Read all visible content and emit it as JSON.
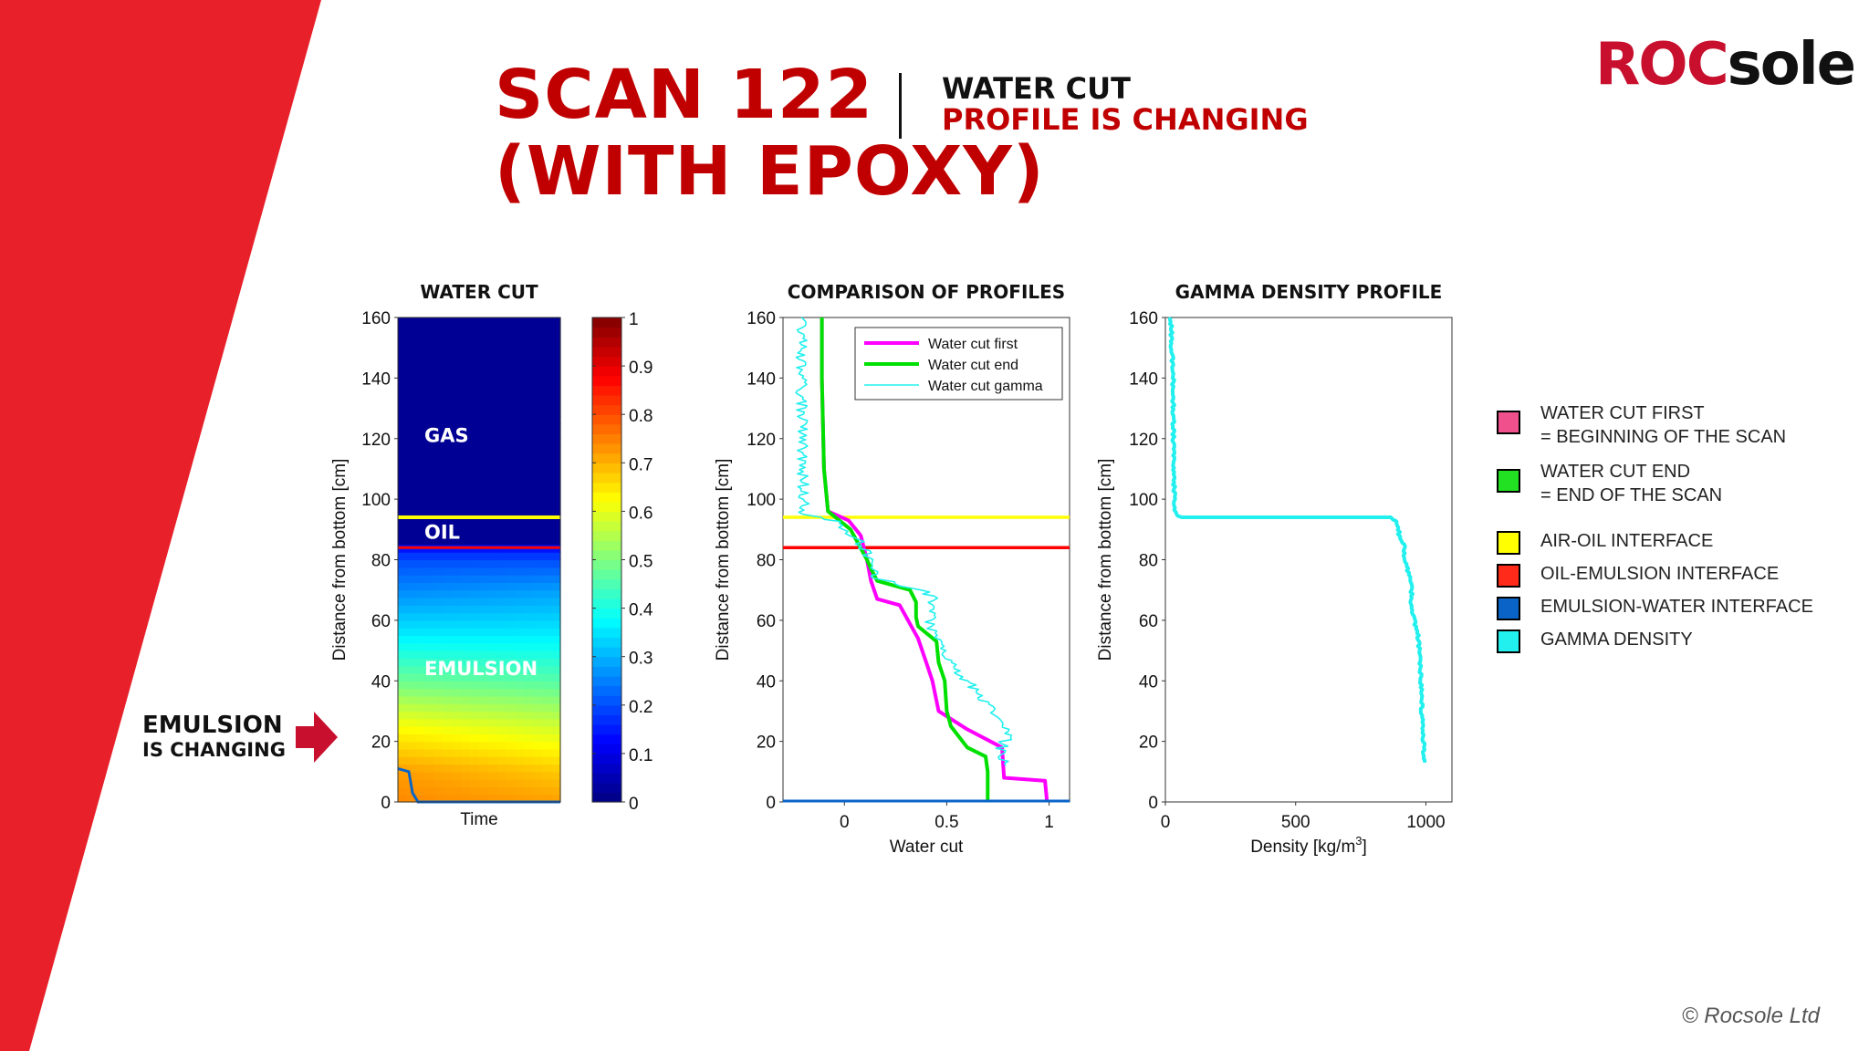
{
  "header": {
    "title_line1": "SCAN 122",
    "title_line2": "(WITH EPOXY)",
    "subtitle_line1": "WATER CUT",
    "subtitle_line2": "PROFILE IS CHANGING"
  },
  "logo": {
    "text_red": "ROC",
    "text_dark": "sole"
  },
  "copyright": "© Rocsole Ltd",
  "side_note": {
    "line1": "EMULSION",
    "line2": "IS CHANGING"
  },
  "colors": {
    "brand_red": "#e8202a",
    "title_red": "#c00000",
    "first": "#ff00ff",
    "end": "#00e000",
    "gamma": "#22f0ee",
    "air_oil": "#ffff00",
    "oil_emulsion": "#ff0000",
    "emulsion_water": "#0a64c8"
  },
  "legend": [
    {
      "label": "WATER CUT FIRST",
      "label2": "=  BEGINNING OF THE SCAN",
      "color": "#f0508c"
    },
    {
      "label": "WATER CUT END",
      "label2": "= END OF THE SCAN",
      "color": "#22e022"
    },
    {
      "label": "AIR-OIL INTERFACE",
      "color": "#ffff00"
    },
    {
      "label": "OIL-EMULSION INTERFACE",
      "color": "#ff2a1a"
    },
    {
      "label": "EMULSION-WATER INTERFACE",
      "color": "#0a64c8"
    },
    {
      "label": "GAMMA DENSITY",
      "color": "#22f0ee"
    }
  ],
  "chart_data": [
    {
      "type": "heatmap",
      "title": "WATER CUT",
      "xlabel": "Time",
      "ylabel": "Distance from bottom [cm]",
      "ylim": [
        0,
        160
      ],
      "yticks": [
        0,
        20,
        40,
        60,
        80,
        100,
        120,
        140,
        160
      ],
      "colorbar": {
        "range": [
          0,
          1
        ],
        "ticks": [
          0,
          0.1,
          0.2,
          0.3,
          0.4,
          0.5,
          0.6,
          0.7,
          0.8,
          0.9,
          1
        ],
        "colormap": "jet"
      },
      "regions": [
        {
          "label": "GAS",
          "y": 121
        },
        {
          "label": "OIL",
          "y": 89
        },
        {
          "label": "EMULSION",
          "y": 44
        }
      ],
      "interfaces": {
        "air_oil": 94,
        "oil_emulsion": 84
      },
      "profile_start": {
        "y": [
          0,
          10,
          25,
          40,
          55,
          70,
          80,
          84
        ],
        "value": [
          0.74,
          0.72,
          0.62,
          0.48,
          0.36,
          0.26,
          0.2,
          0.14
        ]
      },
      "profile_end": {
        "y": [
          0,
          10,
          25,
          40,
          55,
          70,
          80,
          84
        ],
        "value": [
          0.72,
          0.68,
          0.58,
          0.46,
          0.36,
          0.28,
          0.2,
          0.14
        ]
      }
    },
    {
      "type": "line",
      "title": "COMPARISON OF PROFILES",
      "xlabel": "Water cut",
      "ylabel": "Distance from bottom [cm]",
      "xlim": [
        -0.3,
        1.1
      ],
      "xticks": [
        0,
        0.5,
        1
      ],
      "ylim": [
        0,
        160
      ],
      "yticks": [
        0,
        20,
        40,
        60,
        80,
        100,
        120,
        140,
        160
      ],
      "hlines": [
        {
          "y": 94,
          "color": "#ffff00"
        },
        {
          "y": 84,
          "color": "#ff0000"
        }
      ],
      "series": [
        {
          "name": "Water cut first",
          "color": "#ff00ff",
          "x": [
            0.99,
            0.98,
            0.78,
            0.77,
            0.6,
            0.46,
            0.43,
            0.4,
            0.36,
            0.27,
            0.16,
            0.13,
            0.11,
            0.08,
            0.02,
            -0.08,
            -0.1,
            -0.11,
            -0.11
          ],
          "y": [
            0,
            7,
            8,
            18,
            24,
            30,
            40,
            46,
            54,
            65,
            67,
            73,
            80,
            88,
            93,
            96,
            110,
            140,
            160
          ]
        },
        {
          "name": "Water cut end",
          "color": "#00e000",
          "x": [
            0.7,
            0.7,
            0.69,
            0.6,
            0.52,
            0.5,
            0.49,
            0.46,
            0.45,
            0.36,
            0.35,
            0.35,
            0.32,
            0.16,
            0.13,
            0.11,
            0.07,
            0.03,
            -0.08,
            -0.1,
            -0.11,
            -0.11
          ],
          "y": [
            0,
            10,
            15,
            18,
            25,
            30,
            40,
            46,
            53,
            58,
            61,
            66,
            70,
            73,
            77,
            80,
            85,
            90,
            96,
            110,
            140,
            160
          ]
        },
        {
          "name": "Water cut gamma",
          "color": "#22f0ee",
          "jitter": true,
          "x": [
            0.78,
            0.76,
            0.8,
            0.76,
            0.68,
            0.6,
            0.52,
            0.48,
            0.46,
            0.42,
            0.43,
            0.37,
            0.15,
            0.12,
            0.1,
            0.07,
            -0.02,
            -0.1,
            -0.2,
            -0.21,
            -0.21
          ],
          "y": [
            12,
            17,
            22,
            28,
            33,
            40,
            46,
            50,
            55,
            58,
            68,
            70,
            74,
            80,
            83,
            86,
            92,
            94,
            95,
            140,
            160
          ]
        }
      ]
    },
    {
      "type": "line",
      "title": "GAMMA DENSITY PROFILE",
      "xlabel": "Density [kg/m",
      "xlabel_sup": "3",
      "xlabel_end": "]",
      "ylabel": "Distance from bottom [cm]",
      "xlim": [
        0,
        1100
      ],
      "xticks": [
        0,
        500,
        1000
      ],
      "ylim": [
        0,
        160
      ],
      "yticks": [
        0,
        20,
        40,
        60,
        80,
        100,
        120,
        140,
        160
      ],
      "series": [
        {
          "name": "Gamma density",
          "color": "#22f0ee",
          "jitter": true,
          "x": [
            995,
            990,
            985,
            980,
            975,
            970,
            955,
            945,
            945,
            935,
            920,
            915,
            900,
            890,
            870,
            60,
            40,
            35,
            30,
            30,
            25,
            20
          ],
          "y": [
            13,
            20,
            30,
            40,
            50,
            55,
            60,
            66,
            70,
            75,
            80,
            85,
            87,
            92,
            94,
            94,
            95,
            100,
            120,
            140,
            150,
            160
          ]
        }
      ]
    }
  ]
}
